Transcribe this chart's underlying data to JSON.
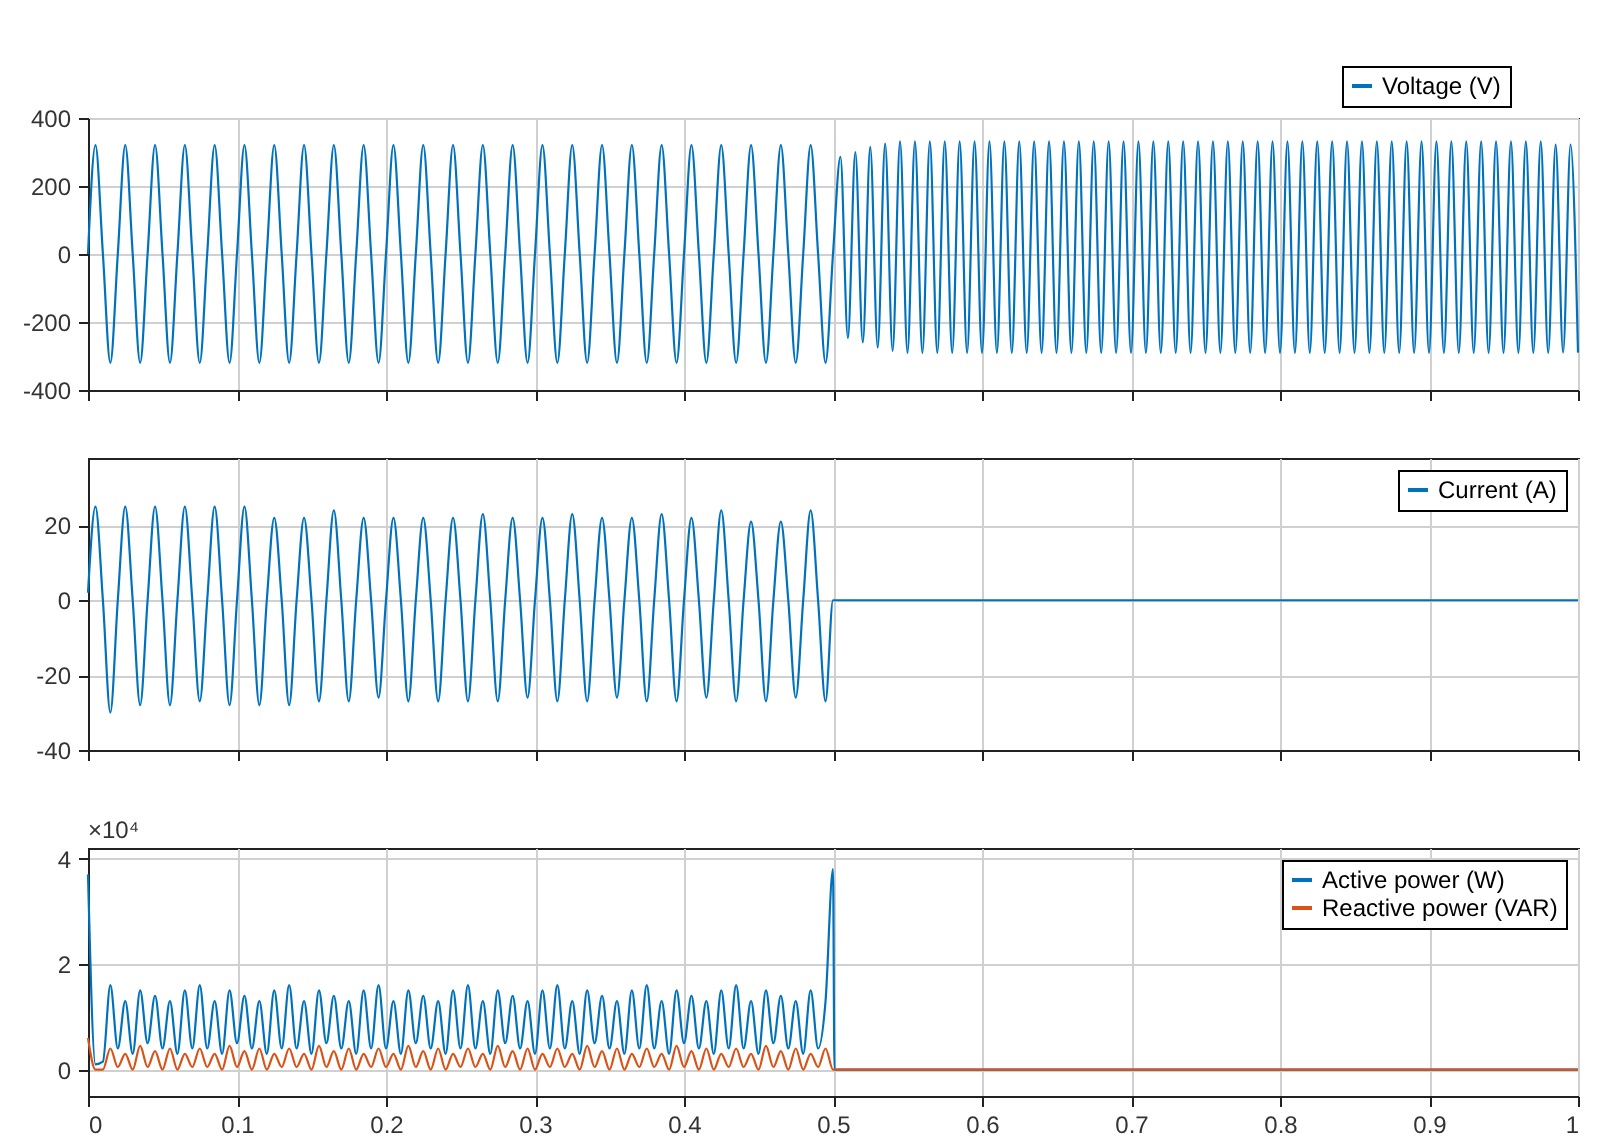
{
  "chart_data": [
    {
      "type": "line",
      "xlim": [
        0,
        1
      ],
      "xticks": [
        0,
        0.1,
        0.2,
        0.3,
        0.4,
        0.5,
        0.6,
        0.7,
        0.8,
        0.9,
        1
      ],
      "ylim": [
        -400,
        400
      ],
      "yticks": [
        -400,
        -200,
        0,
        200,
        400
      ],
      "grid": true,
      "legend": "top right",
      "tick_labels": "y",
      "x": [
        0,
        0.005,
        0.01,
        0.015,
        0.02,
        0.025,
        0.03,
        0.035,
        0.04,
        0.045,
        0.05,
        0.055,
        0.06,
        0.065,
        0.07,
        0.075,
        0.08,
        0.085,
        0.09,
        0.095,
        0.1,
        0.105,
        0.11,
        0.115,
        0.12,
        0.125,
        0.13,
        0.135,
        0.14,
        0.145,
        0.15,
        0.155,
        0.16,
        0.165,
        0.17,
        0.175,
        0.18,
        0.185,
        0.19,
        0.195,
        0.2,
        0.205,
        0.21,
        0.215,
        0.22,
        0.225,
        0.23,
        0.235,
        0.24,
        0.245,
        0.25,
        0.255,
        0.26,
        0.265,
        0.27,
        0.275,
        0.28,
        0.285,
        0.29,
        0.295,
        0.3,
        0.305,
        0.31,
        0.315,
        0.32,
        0.325,
        0.33,
        0.335,
        0.34,
        0.345,
        0.35,
        0.355,
        0.36,
        0.365,
        0.37,
        0.375,
        0.38,
        0.385,
        0.39,
        0.395,
        0.4,
        0.405,
        0.41,
        0.415,
        0.42,
        0.425,
        0.43,
        0.435,
        0.44,
        0.445,
        0.45,
        0.455,
        0.46,
        0.465,
        0.47,
        0.475,
        0.48,
        0.485,
        0.49,
        0.495,
        0.5,
        0.505,
        0.51,
        0.515,
        0.52,
        0.525,
        0.53,
        0.535,
        0.54,
        0.545,
        0.55,
        0.555,
        0.56,
        0.565,
        0.57,
        0.575,
        0.58,
        0.585,
        0.59,
        0.595,
        0.6,
        0.605,
        0.61,
        0.615,
        0.62,
        0.625,
        0.63,
        0.635,
        0.64,
        0.645,
        0.65,
        0.655,
        0.66,
        0.665,
        0.67,
        0.675,
        0.68,
        0.685,
        0.69,
        0.695,
        0.7,
        0.705,
        0.71,
        0.715,
        0.72,
        0.725,
        0.73,
        0.735,
        0.74,
        0.745,
        0.75,
        0.755,
        0.76,
        0.765,
        0.77,
        0.775,
        0.78,
        0.785,
        0.79,
        0.795,
        0.8,
        0.805,
        0.81,
        0.815,
        0.82,
        0.825,
        0.83,
        0.835,
        0.84,
        0.845,
        0.85,
        0.855,
        0.86,
        0.865,
        0.87,
        0.875,
        0.88,
        0.885,
        0.89,
        0.895,
        0.9,
        0.905,
        0.91,
        0.915,
        0.92,
        0.925,
        0.93,
        0.935,
        0.94,
        0.945,
        0.95,
        0.955,
        0.96,
        0.965,
        0.97,
        0.975,
        0.98,
        0.985,
        0.99,
        0.995,
        1
      ],
      "series": [
        {
          "name": "Voltage (V)",
          "color": "#0072bd",
          "values": [
            0,
            320,
            0,
            -320,
            0,
            320,
            0,
            -320,
            0,
            320,
            0,
            -320,
            0,
            320,
            0,
            -320,
            0,
            320,
            0,
            -320,
            0,
            320,
            0,
            -320,
            0,
            320,
            0,
            -320,
            0,
            320,
            0,
            -320,
            0,
            320,
            0,
            -320,
            0,
            320,
            0,
            -320,
            0,
            320,
            0,
            -320,
            0,
            320,
            0,
            -320,
            0,
            320,
            0,
            -320,
            0,
            320,
            0,
            -320,
            0,
            320,
            0,
            -320,
            0,
            320,
            0,
            -320,
            0,
            320,
            0,
            -320,
            0,
            320,
            0,
            -320,
            0,
            320,
            0,
            -320,
            0,
            320,
            0,
            -320,
            0,
            320,
            0,
            -320,
            0,
            320,
            0,
            -320,
            0,
            320,
            0,
            -320,
            0,
            320,
            0,
            -320,
            0,
            320,
            0,
            -320,
            0,
            286,
            -247,
            300,
            -260,
            315,
            -275,
            325,
            -285,
            331,
            -291,
            331,
            -291,
            331,
            -291,
            331,
            -291,
            331,
            -291,
            331,
            -291,
            331,
            -291,
            331,
            -291,
            331,
            -291,
            331,
            -291,
            331,
            -291,
            331,
            -291,
            331,
            -291,
            331,
            -291,
            331,
            -291,
            331,
            -291,
            331,
            -291,
            331,
            -291,
            331,
            -291,
            331,
            -291,
            331,
            -291,
            331,
            -291,
            331,
            -291,
            331,
            -291,
            331,
            -291,
            331,
            -291,
            331,
            -291,
            331,
            -291,
            331,
            -291,
            331,
            -291,
            331,
            -291,
            331,
            -291,
            331,
            -291,
            331,
            -291,
            331,
            -291,
            331,
            -291,
            331,
            -291,
            331,
            -291,
            331,
            -291,
            331,
            -291,
            331,
            -291,
            331,
            -291,
            331,
            -291,
            331,
            -291,
            322,
            -290,
            322,
            -290
          ]
        }
      ]
    },
    {
      "type": "line",
      "xlim": [
        0,
        1
      ],
      "xticks": [
        0,
        0.1,
        0.2,
        0.3,
        0.4,
        0.5,
        0.6,
        0.7,
        0.8,
        0.9,
        1
      ],
      "ylim": [
        -40,
        38
      ],
      "yticks": [
        -40,
        -20,
        0,
        20
      ],
      "grid": true,
      "legend": "top right",
      "tick_labels": "y",
      "x": [
        0,
        0.005,
        0.01,
        0.015,
        0.02,
        0.025,
        0.03,
        0.035,
        0.04,
        0.045,
        0.05,
        0.055,
        0.06,
        0.065,
        0.07,
        0.075,
        0.08,
        0.085,
        0.09,
        0.095,
        0.1,
        0.105,
        0.11,
        0.115,
        0.12,
        0.125,
        0.13,
        0.135,
        0.14,
        0.145,
        0.15,
        0.155,
        0.16,
        0.165,
        0.17,
        0.175,
        0.18,
        0.185,
        0.19,
        0.195,
        0.2,
        0.205,
        0.21,
        0.215,
        0.22,
        0.225,
        0.23,
        0.235,
        0.24,
        0.245,
        0.25,
        0.255,
        0.26,
        0.265,
        0.27,
        0.275,
        0.28,
        0.285,
        0.29,
        0.295,
        0.3,
        0.305,
        0.31,
        0.315,
        0.32,
        0.325,
        0.33,
        0.335,
        0.34,
        0.345,
        0.35,
        0.355,
        0.36,
        0.365,
        0.37,
        0.375,
        0.38,
        0.385,
        0.39,
        0.395,
        0.4,
        0.405,
        0.41,
        0.415,
        0.42,
        0.425,
        0.43,
        0.435,
        0.44,
        0.445,
        0.45,
        0.455,
        0.46,
        0.465,
        0.47,
        0.475,
        0.48,
        0.485,
        0.49,
        0.495,
        0.5,
        1
      ],
      "series": [
        {
          "name": "Current (A)",
          "color": "#0072bd",
          "values": [
            2,
            25,
            0,
            -30,
            0,
            25,
            0,
            -28,
            0,
            25,
            0,
            -28,
            0,
            25,
            0,
            -27,
            0,
            25,
            0,
            -28,
            0,
            25,
            0,
            -28,
            0,
            22,
            0,
            -28,
            0,
            22,
            0,
            -27,
            0,
            24,
            0,
            -27,
            0,
            22,
            0,
            -26,
            0,
            22,
            0,
            -27,
            0,
            22,
            0,
            -27,
            0,
            22,
            0,
            -27,
            0,
            23,
            0,
            -27,
            0,
            22,
            0,
            -26,
            0,
            22,
            0,
            -27,
            0,
            23,
            0,
            -27,
            0,
            22,
            0,
            -26,
            0,
            22,
            0,
            -27,
            0,
            23,
            0,
            -27,
            0,
            22,
            0,
            -26,
            0,
            24,
            0,
            -27,
            0,
            21,
            0,
            -27,
            0,
            21,
            0,
            -26,
            0,
            24,
            0,
            -27,
            0,
            0
          ]
        }
      ]
    },
    {
      "type": "line",
      "xlim": [
        0,
        1
      ],
      "xticks": [
        0,
        0.1,
        0.2,
        0.3,
        0.4,
        0.5,
        0.6,
        0.7,
        0.8,
        0.9,
        1
      ],
      "ylim": [
        -0.5,
        4.2
      ],
      "yticks": [
        0,
        2,
        4
      ],
      "grid": true,
      "legend": "top right",
      "annotations": [
        "×10⁴"
      ],
      "x": [
        0,
        0.005,
        0.01,
        0.015,
        0.02,
        0.025,
        0.03,
        0.035,
        0.04,
        0.045,
        0.05,
        0.055,
        0.06,
        0.065,
        0.07,
        0.075,
        0.08,
        0.085,
        0.09,
        0.095,
        0.1,
        0.105,
        0.11,
        0.115,
        0.12,
        0.125,
        0.13,
        0.135,
        0.14,
        0.145,
        0.15,
        0.155,
        0.16,
        0.165,
        0.17,
        0.175,
        0.18,
        0.185,
        0.19,
        0.195,
        0.2,
        0.205,
        0.21,
        0.215,
        0.22,
        0.225,
        0.23,
        0.235,
        0.24,
        0.245,
        0.25,
        0.255,
        0.26,
        0.265,
        0.27,
        0.275,
        0.28,
        0.285,
        0.29,
        0.295,
        0.3,
        0.305,
        0.31,
        0.315,
        0.32,
        0.325,
        0.33,
        0.335,
        0.34,
        0.345,
        0.35,
        0.355,
        0.36,
        0.365,
        0.37,
        0.375,
        0.38,
        0.385,
        0.39,
        0.395,
        0.4,
        0.405,
        0.41,
        0.415,
        0.42,
        0.425,
        0.43,
        0.435,
        0.44,
        0.445,
        0.45,
        0.455,
        0.46,
        0.465,
        0.47,
        0.475,
        0.48,
        0.485,
        0.49,
        0.495,
        0.5,
        0.501,
        1
      ],
      "series": [
        {
          "name": "Active power (W)",
          "color": "#0072bd",
          "values": [
            3.7,
            0.1,
            0.15,
            1.6,
            0.4,
            1.3,
            0.3,
            1.5,
            0.5,
            1.4,
            0.4,
            1.3,
            0.3,
            1.5,
            0.4,
            1.6,
            0.4,
            1.3,
            0.3,
            1.5,
            0.5,
            1.4,
            0.4,
            1.3,
            0.3,
            1.5,
            0.4,
            1.6,
            0.4,
            1.3,
            0.3,
            1.5,
            0.5,
            1.4,
            0.4,
            1.3,
            0.3,
            1.5,
            0.4,
            1.6,
            0.4,
            1.3,
            0.3,
            1.5,
            0.5,
            1.4,
            0.4,
            1.3,
            0.3,
            1.5,
            0.4,
            1.6,
            0.4,
            1.3,
            0.3,
            1.5,
            0.5,
            1.4,
            0.4,
            1.3,
            0.3,
            1.5,
            0.4,
            1.6,
            0.4,
            1.3,
            0.3,
            1.5,
            0.5,
            1.4,
            0.4,
            1.3,
            0.3,
            1.5,
            0.4,
            1.6,
            0.4,
            1.3,
            0.3,
            1.5,
            0.5,
            1.4,
            0.4,
            1.3,
            0.3,
            1.5,
            0.4,
            1.6,
            0.4,
            1.3,
            0.3,
            1.5,
            0.5,
            1.4,
            0.4,
            1.3,
            0.3,
            1.5,
            0.4,
            1.3,
            3.8,
            0,
            0
          ]
        },
        {
          "name": "Reactive power (VAR)",
          "color": "#d95319",
          "values": [
            0.6,
            0,
            0,
            0.4,
            0.05,
            0.3,
            0,
            0.45,
            0.05,
            0.35,
            0,
            0.4,
            0,
            0.3,
            0.05,
            0.4,
            0.05,
            0.3,
            0,
            0.45,
            0.05,
            0.35,
            0,
            0.4,
            0,
            0.3,
            0.05,
            0.4,
            0.05,
            0.3,
            0,
            0.45,
            0.05,
            0.35,
            0,
            0.4,
            0,
            0.3,
            0.05,
            0.4,
            0.05,
            0.3,
            0,
            0.45,
            0.05,
            0.35,
            0,
            0.4,
            0,
            0.3,
            0.05,
            0.4,
            0.05,
            0.3,
            0,
            0.45,
            0.05,
            0.35,
            0,
            0.4,
            0,
            0.3,
            0.05,
            0.4,
            0.05,
            0.3,
            0,
            0.45,
            0.05,
            0.35,
            0,
            0.4,
            0,
            0.3,
            0.05,
            0.4,
            0.05,
            0.3,
            0,
            0.45,
            0.05,
            0.35,
            0,
            0.4,
            0,
            0.3,
            0.05,
            0.4,
            0.05,
            0.3,
            0,
            0.45,
            0.05,
            0.35,
            0,
            0.4,
            0,
            0.3,
            0.05,
            0.4,
            0,
            0,
            0
          ]
        }
      ]
    }
  ]
}
